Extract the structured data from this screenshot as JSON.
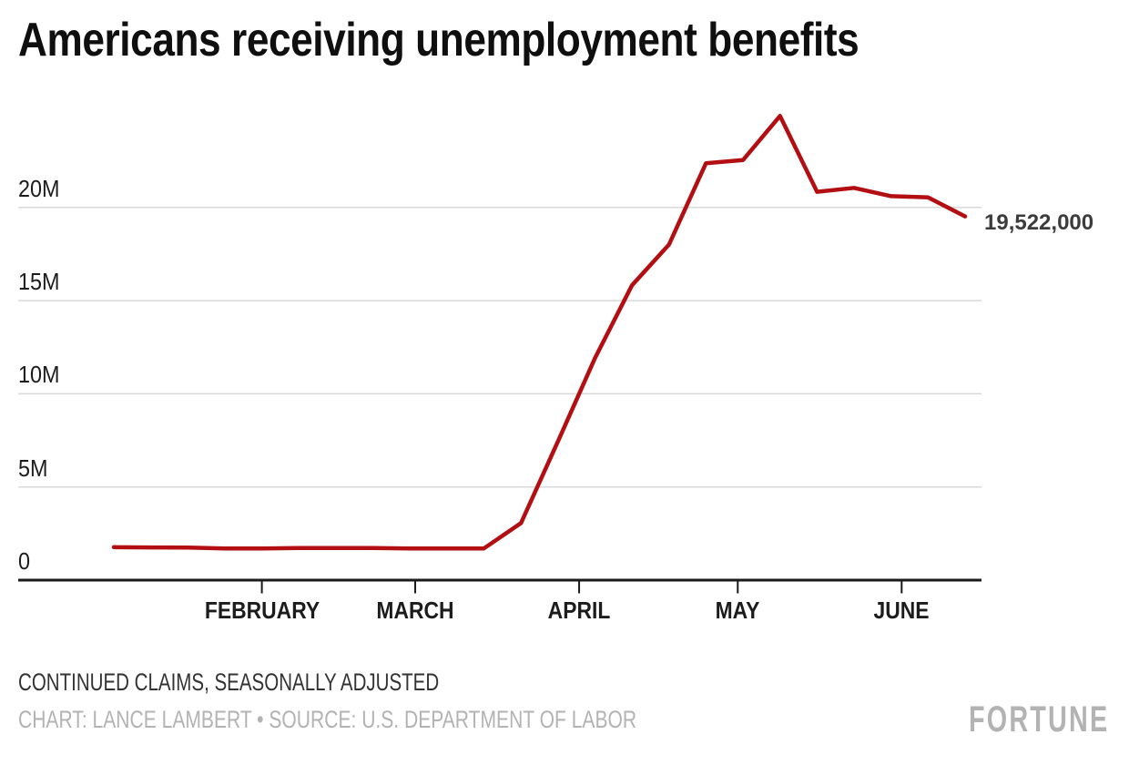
{
  "header": {
    "title": "Americans receiving unemployment benefits"
  },
  "chart_data": {
    "type": "line",
    "title": "Americans receiving unemployment benefits",
    "ylabel": "",
    "xlabel": "",
    "ylim": [
      0,
      25800000
    ],
    "grid": "horizontal",
    "legend": "none",
    "x_range": {
      "start": "2020-01-04",
      "end": "2020-06-13"
    },
    "y_ticks": [
      {
        "value": 0,
        "label": "0"
      },
      {
        "value": 5000000,
        "label": "5M"
      },
      {
        "value": 10000000,
        "label": "10M"
      },
      {
        "value": 15000000,
        "label": "15M"
      },
      {
        "value": 20000000,
        "label": "20M"
      }
    ],
    "month_ticks": [
      {
        "label": "FEBRUARY",
        "date": "2020-02-01"
      },
      {
        "label": "MARCH",
        "date": "2020-03-01"
      },
      {
        "label": "APRIL",
        "date": "2020-04-01"
      },
      {
        "label": "MAY",
        "date": "2020-05-01"
      },
      {
        "label": "JUNE",
        "date": "2020-06-01"
      }
    ],
    "series": [
      {
        "name": "Continued claims, seasonally adjusted",
        "points": [
          {
            "date": "2020-01-04",
            "value": 1770000
          },
          {
            "date": "2020-01-11",
            "value": 1756000
          },
          {
            "date": "2020-01-18",
            "value": 1747000
          },
          {
            "date": "2020-01-25",
            "value": 1703000
          },
          {
            "date": "2020-02-01",
            "value": 1698000
          },
          {
            "date": "2020-02-08",
            "value": 1726000
          },
          {
            "date": "2020-02-15",
            "value": 1726000
          },
          {
            "date": "2020-02-22",
            "value": 1719000
          },
          {
            "date": "2020-02-29",
            "value": 1699000
          },
          {
            "date": "2020-03-07",
            "value": 1702000
          },
          {
            "date": "2020-03-14",
            "value": 1702000
          },
          {
            "date": "2020-03-21",
            "value": 3059000
          },
          {
            "date": "2020-03-28",
            "value": 7446000
          },
          {
            "date": "2020-04-04",
            "value": 11914000
          },
          {
            "date": "2020-04-11",
            "value": 15819000
          },
          {
            "date": "2020-04-18",
            "value": 18011000
          },
          {
            "date": "2020-04-25",
            "value": 22377000
          },
          {
            "date": "2020-05-02",
            "value": 22548000
          },
          {
            "date": "2020-05-09",
            "value": 24912000
          },
          {
            "date": "2020-05-16",
            "value": 20841000
          },
          {
            "date": "2020-05-23",
            "value": 21052000
          },
          {
            "date": "2020-05-30",
            "value": 20606000
          },
          {
            "date": "2020-06-06",
            "value": 20544000
          },
          {
            "date": "2020-06-13",
            "value": 19522000
          }
        ]
      }
    ],
    "end_label": "19,522,000"
  },
  "footer": {
    "note": "CONTINUED CLAIMS, SEASONALLY ADJUSTED",
    "credit": "CHART: LANCE LAMBERT • SOURCE: U.S. DEPARTMENT OF LABOR",
    "logo": "FORTUNE"
  },
  "colors": {
    "background": "#ffffff",
    "line": "#b30e12",
    "grid": "#d9d9d9",
    "axis": "#1a1a1a",
    "title": "#0f0f0f",
    "axis_label": "#1c1c1c",
    "end_label": "#3c3c3c",
    "note": "#333333",
    "credit": "#b3b3b3",
    "logo": "#b3b3b3"
  }
}
